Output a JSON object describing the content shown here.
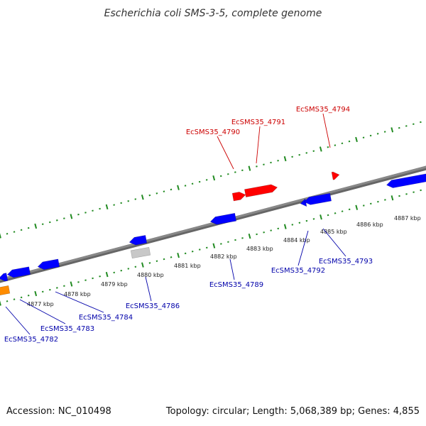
{
  "title": "Escherichia coli SMS-3-5, complete genome",
  "footer": {
    "accession": "Accession: NC_010498",
    "summary": "Topology: circular; Length: 5,068,389 bp; Genes: 4,855"
  },
  "colors": {
    "forward_gene": "#ff0000",
    "reverse_gene": "#0000ff",
    "orange_gene": "#ff8c00",
    "gray_gene": "#c8c8c8",
    "backbone": "#888888",
    "ticks": "#228b22",
    "forward_label": "#cc0000",
    "reverse_label": "#0000aa"
  },
  "scale_ticks": [
    {
      "label": "4877 kbp"
    },
    {
      "label": "4878 kbp"
    },
    {
      "label": "4879 kbp"
    },
    {
      "label": "4880 kbp"
    },
    {
      "label": "4881 kbp"
    },
    {
      "label": "4882 kbp"
    },
    {
      "label": "4883 kbp"
    },
    {
      "label": "4884 kbp"
    },
    {
      "label": "4885 kbp"
    },
    {
      "label": "4886 kbp"
    },
    {
      "label": "4887 kbp"
    }
  ],
  "forward_labels": [
    {
      "name": "EcSMS35_4790"
    },
    {
      "name": "EcSMS35_4791"
    },
    {
      "name": "EcSMS35_4794"
    }
  ],
  "reverse_labels": [
    {
      "name": "EcSMS35_4782"
    },
    {
      "name": "EcSMS35_4783"
    },
    {
      "name": "EcSMS35_4784"
    },
    {
      "name": "EcSMS35_4786"
    },
    {
      "name": "EcSMS35_4789"
    },
    {
      "name": "EcSMS35_4792"
    },
    {
      "name": "EcSMS35_4793"
    }
  ]
}
